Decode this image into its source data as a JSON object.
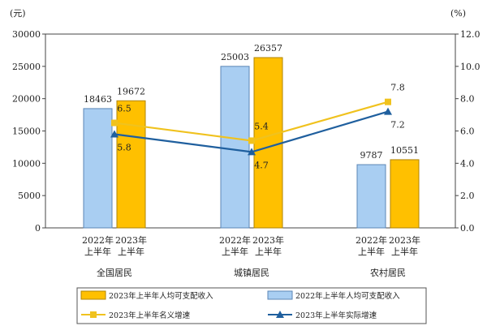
{
  "chart_data": {
    "type": "bar",
    "left_unit": "(元)",
    "right_unit": "(%)",
    "categories": [
      "全国居民",
      "城镇居民",
      "农村居民"
    ],
    "year_labels": [
      "2022年\n上半年",
      "2023年\n上半年"
    ],
    "ylim": [
      0,
      30000
    ],
    "y_ticks": [
      0,
      5000,
      10000,
      15000,
      20000,
      25000,
      30000
    ],
    "y2lim": [
      0,
      12
    ],
    "y2_ticks": [
      "0.0",
      "2.0",
      "4.0",
      "6.0",
      "8.0",
      "10.0",
      "12.0"
    ],
    "series": [
      {
        "name": "2022年上半年人均可支配收入",
        "kind": "bar",
        "color": "#a9cef2",
        "edge": "#5b86b6",
        "values": [
          18463,
          25003,
          9787
        ]
      },
      {
        "name": "2023年上半年人均可支配收入",
        "kind": "bar",
        "color": "#ffc000",
        "edge": "#b08400",
        "values": [
          19672,
          26357,
          10551
        ]
      },
      {
        "name": "2023年上半年名义增速",
        "kind": "line",
        "axis": "right",
        "color": "#f0c21e",
        "marker": "square",
        "values": [
          6.5,
          5.4,
          7.8
        ],
        "labels": [
          "6.5",
          "5.4",
          "7.8"
        ]
      },
      {
        "name": "2023年上半年实际增速",
        "kind": "line",
        "axis": "right",
        "color": "#1f5f9e",
        "marker": "triangle",
        "values": [
          5.8,
          4.7,
          7.2
        ],
        "labels": [
          "5.8",
          "4.7",
          "7.2"
        ]
      }
    ],
    "legend_order": [
      1,
      0,
      2,
      3
    ],
    "legend_position": "bottom",
    "grid": false
  }
}
